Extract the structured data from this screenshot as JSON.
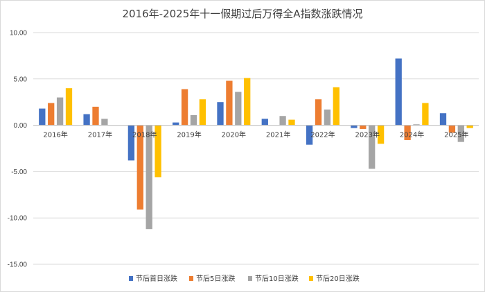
{
  "chart_data": {
    "type": "bar",
    "title": "2016年-2025年十一假期过后万得全A指数涨跌情况",
    "categories": [
      "2016年",
      "2017年",
      "2018年",
      "2019年",
      "2020年",
      "2021年",
      "2022年",
      "2023年",
      "2024年",
      "2025年"
    ],
    "series": [
      {
        "name": "节后首日涨跌",
        "color": "#4472C4",
        "values": [
          1.8,
          1.2,
          -3.8,
          0.3,
          2.5,
          0.7,
          -2.1,
          -0.3,
          7.2,
          1.3
        ]
      },
      {
        "name": "节后5日涨跌",
        "color": "#ED7D31",
        "values": [
          2.4,
          2.0,
          -9.1,
          3.9,
          4.8,
          0.0,
          2.8,
          -0.4,
          -1.6,
          -0.8
        ]
      },
      {
        "name": "节后10日涨跌",
        "color": "#A5A5A5",
        "values": [
          3.0,
          0.7,
          -11.2,
          1.1,
          3.6,
          1.0,
          1.7,
          -4.7,
          0.1,
          -1.8
        ]
      },
      {
        "name": "节后20日涨跌",
        "color": "#FFC000",
        "values": [
          4.0,
          0.0,
          -5.6,
          2.8,
          5.1,
          0.6,
          4.1,
          -2.0,
          2.4,
          -0.3
        ]
      }
    ],
    "ylim": [
      -15,
      10
    ],
    "yticks": [
      "10.00",
      "5.00",
      "0.00",
      "-5.00",
      "-10.00",
      "-15.00"
    ],
    "grid": true,
    "legend": "bottom"
  }
}
